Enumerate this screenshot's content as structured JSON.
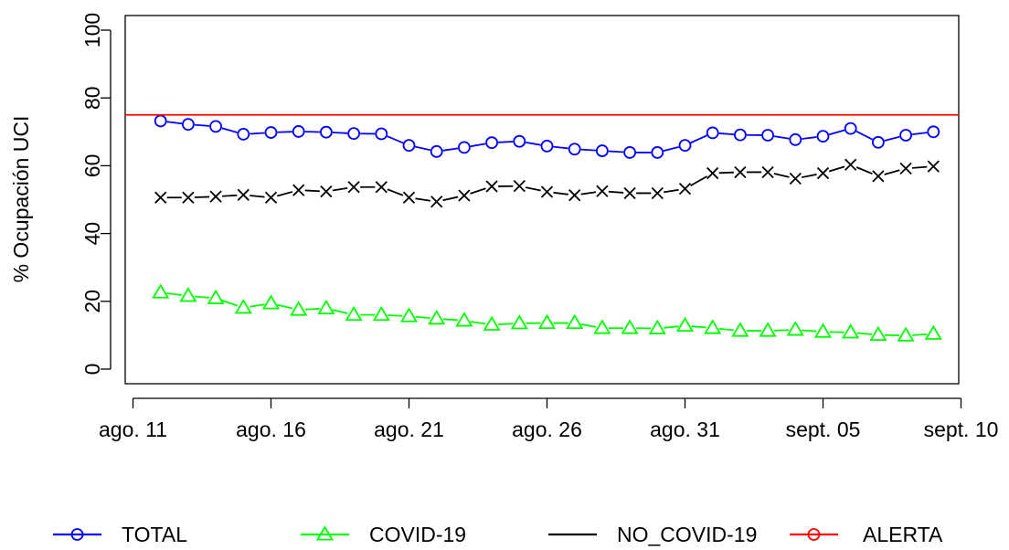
{
  "chart_data": {
    "type": "line",
    "title": "",
    "xlabel": "",
    "ylabel": "% Ocupación UCI",
    "x": [
      "ago. 12",
      "ago. 13",
      "ago. 14",
      "ago. 15",
      "ago. 16",
      "ago. 17",
      "ago. 18",
      "ago. 19",
      "ago. 20",
      "ago. 21",
      "ago. 22",
      "ago. 23",
      "ago. 24",
      "ago. 25",
      "ago. 26",
      "ago. 27",
      "ago. 28",
      "ago. 29",
      "ago. 30",
      "ago. 31",
      "sept. 01",
      "sept. 02",
      "sept. 03",
      "sept. 04",
      "sept. 05",
      "sept. 06",
      "sept. 07",
      "sept. 08",
      "sept. 09"
    ],
    "x_ticks": [
      "ago. 11",
      "ago. 16",
      "ago. 21",
      "ago. 26",
      "ago. 31",
      "sept. 05",
      "sept. 10"
    ],
    "ylim": [
      0,
      100
    ],
    "y_ticks": [
      "0",
      "20",
      "40",
      "60",
      "80",
      "100"
    ],
    "grid": false,
    "legend_position": "bottom",
    "series": [
      {
        "name": "TOTAL",
        "color": "#0000ff",
        "marker": "circle",
        "values": [
          73.2,
          72.2,
          71.6,
          69.3,
          69.8,
          70.1,
          69.9,
          69.5,
          69.4,
          66.0,
          64.2,
          65.4,
          66.8,
          67.2,
          65.8,
          64.9,
          64.4,
          63.9,
          63.9,
          66.0,
          69.7,
          69.1,
          69.0,
          67.7,
          68.7,
          71.0,
          66.9,
          69.0,
          70.0
        ]
      },
      {
        "name": "COVID-19",
        "color": "#00ff00",
        "marker": "triangle",
        "values": [
          22.6,
          21.6,
          20.9,
          18.1,
          19.4,
          17.5,
          17.9,
          16.0,
          16.0,
          15.6,
          14.9,
          14.3,
          13.1,
          13.5,
          13.6,
          13.6,
          12.1,
          12.1,
          12.0,
          12.8,
          12.1,
          11.3,
          11.3,
          11.6,
          11.0,
          10.8,
          10.1,
          9.9,
          10.4
        ]
      },
      {
        "name": "NO_COVID-19",
        "color": "#000000",
        "marker": "cross",
        "values": [
          50.6,
          50.6,
          50.9,
          51.4,
          50.6,
          52.8,
          52.4,
          53.7,
          53.7,
          50.6,
          49.4,
          51.2,
          53.9,
          54.0,
          52.3,
          51.3,
          52.5,
          51.9,
          51.9,
          53.2,
          57.8,
          58.1,
          58.1,
          56.2,
          57.8,
          60.3,
          56.9,
          59.2,
          59.8
        ]
      },
      {
        "name": "ALERTA",
        "color": "#ff0000",
        "marker": "circle",
        "constant": 75
      }
    ]
  }
}
